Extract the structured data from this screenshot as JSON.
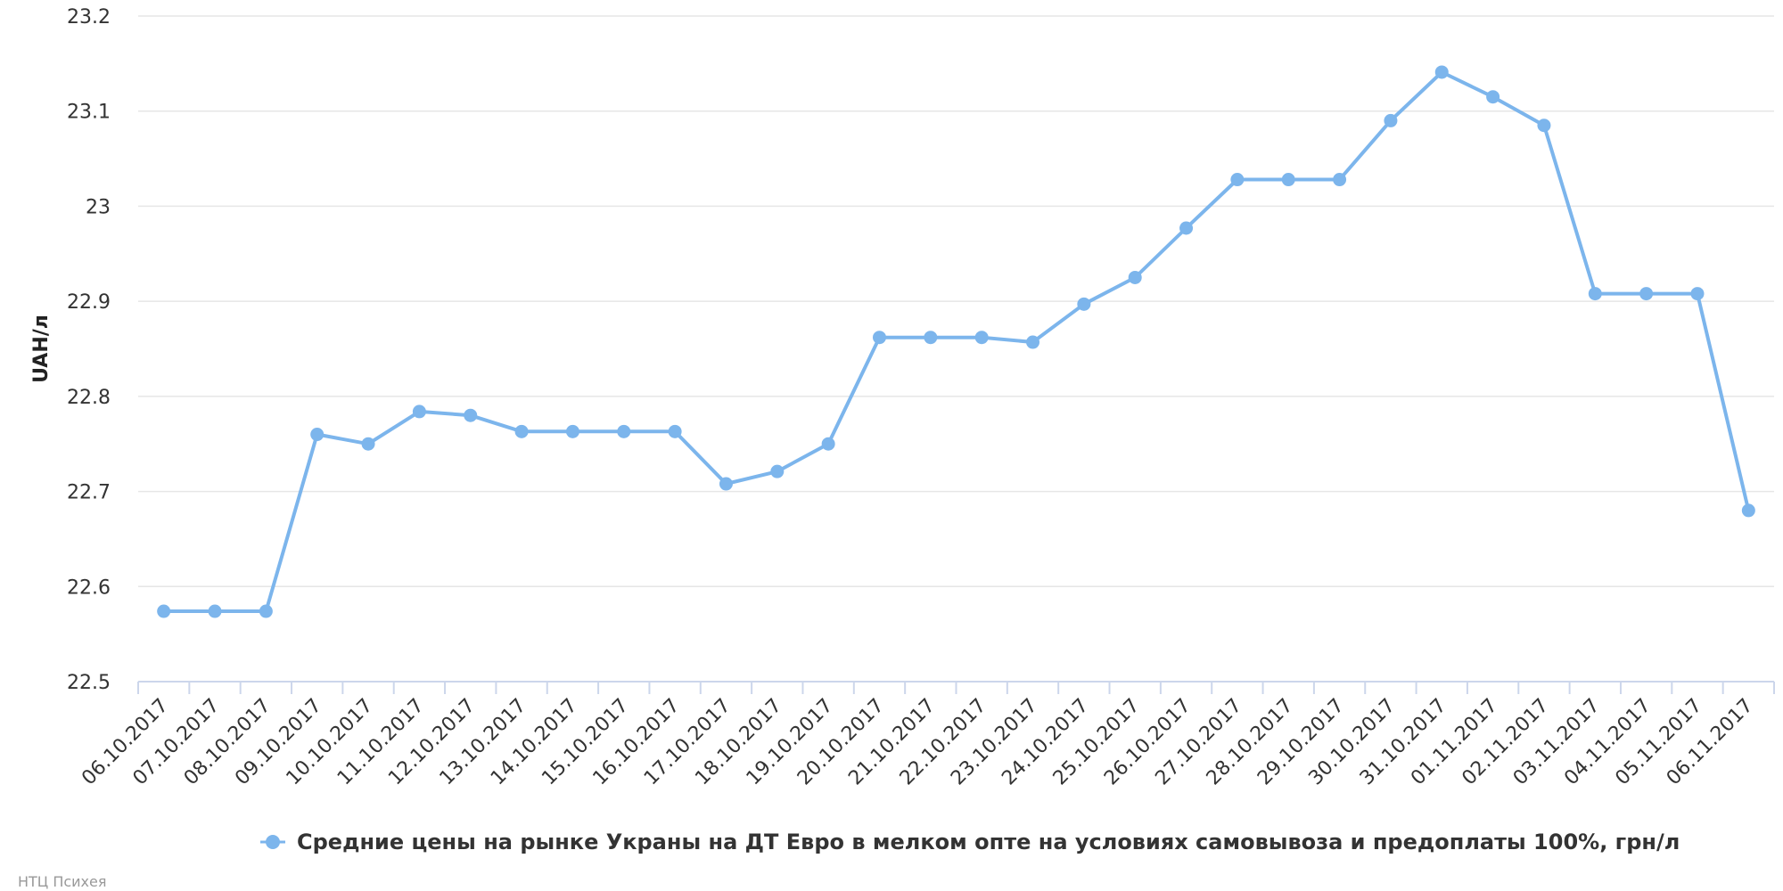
{
  "chart_data": {
    "type": "line",
    "ylabel": "UAH/л",
    "ylim": [
      22.5,
      23.2
    ],
    "yticks": [
      "22.5",
      "22.6",
      "22.7",
      "22.8",
      "22.9",
      "23",
      "23.1",
      "23.2"
    ],
    "grid": true,
    "legend_position": "bottom-center",
    "categories": [
      "06.10.2017",
      "07.10.2017",
      "08.10.2017",
      "09.10.2017",
      "10.10.2017",
      "11.10.2017",
      "12.10.2017",
      "13.10.2017",
      "14.10.2017",
      "15.10.2017",
      "16.10.2017",
      "17.10.2017",
      "18.10.2017",
      "19.10.2017",
      "20.10.2017",
      "21.10.2017",
      "22.10.2017",
      "23.10.2017",
      "24.10.2017",
      "25.10.2017",
      "26.10.2017",
      "27.10.2017",
      "28.10.2017",
      "29.10.2017",
      "30.10.2017",
      "31.10.2017",
      "01.11.2017",
      "02.11.2017",
      "03.11.2017",
      "04.11.2017",
      "05.11.2017",
      "06.11.2017"
    ],
    "series": [
      {
        "name": "Средние цены на рынке Украны на ДТ Евро в мелком опте на условиях самовывоза и предоплаты 100%, грн/л",
        "color": "#7cb5ec",
        "values": [
          22.574,
          22.574,
          22.574,
          22.76,
          22.75,
          22.784,
          22.78,
          22.763,
          22.763,
          22.763,
          22.763,
          22.708,
          22.721,
          22.75,
          22.862,
          22.862,
          22.862,
          22.857,
          22.897,
          22.925,
          22.977,
          23.028,
          23.028,
          23.028,
          23.09,
          23.141,
          23.115,
          23.085,
          22.908,
          22.908,
          22.908,
          22.68
        ]
      }
    ]
  },
  "credits": "НТЦ Психея"
}
